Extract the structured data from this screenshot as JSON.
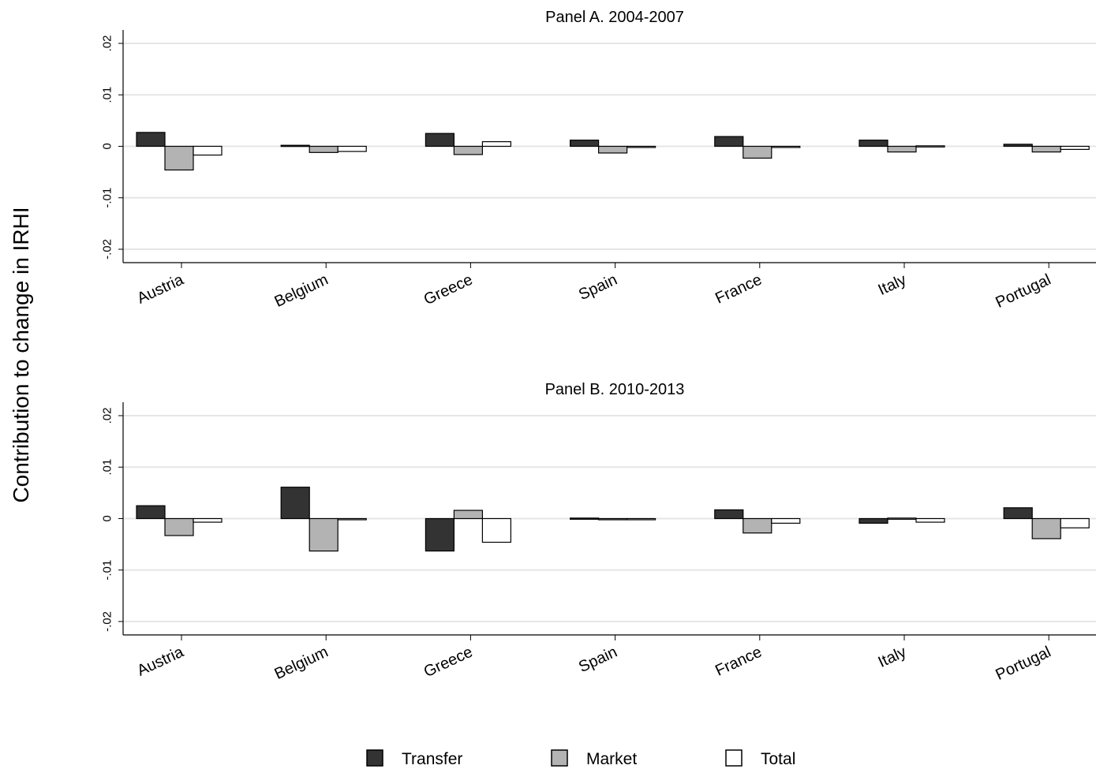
{
  "chart_data": [
    {
      "type": "bar",
      "title": "Panel A. 2004-2007",
      "ylabel": "Contribution to change in IRHI",
      "ylim": [
        -0.02,
        0.02
      ],
      "yticks": [
        "-.02",
        "-.01",
        "0",
        ".01",
        ".02"
      ],
      "grid": true,
      "categories": [
        "Austria",
        "Belgium",
        "Greece",
        "Spain",
        "France",
        "Italy",
        "Portugal"
      ],
      "series": [
        {
          "name": "Transfer",
          "values": [
            0.0027,
            0.0002,
            0.0025,
            0.0012,
            0.0019,
            0.0012,
            0.0004
          ]
        },
        {
          "name": "Market",
          "values": [
            -0.0046,
            -0.0012,
            -0.0016,
            -0.0013,
            -0.0023,
            -0.0011,
            -0.0011
          ]
        },
        {
          "name": "Total",
          "values": [
            -0.0017,
            -0.001,
            0.0009,
            -0.0002,
            -0.0002,
            0.0001,
            -0.0006
          ]
        }
      ]
    },
    {
      "type": "bar",
      "title": "Panel B. 2010-2013",
      "ylabel": "Contribution to change in IRHI",
      "ylim": [
        -0.02,
        0.02
      ],
      "yticks": [
        "-.02",
        "-.01",
        "0",
        ".01",
        ".02"
      ],
      "grid": true,
      "categories": [
        "Austria",
        "Belgium",
        "Greece",
        "Spain",
        "France",
        "Italy",
        "Portugal"
      ],
      "series": [
        {
          "name": "Transfer",
          "values": [
            0.0025,
            0.0061,
            -0.0063,
            0.0001,
            0.0017,
            -0.0009,
            0.0021
          ]
        },
        {
          "name": "Market",
          "values": [
            -0.0033,
            -0.0063,
            0.0016,
            -0.0001,
            -0.0028,
            0.0001,
            -0.0039
          ]
        },
        {
          "name": "Total",
          "values": [
            -0.0007,
            -0.0001,
            -0.0046,
            -0.0001,
            -0.0009,
            -0.0007,
            -0.0018
          ]
        }
      ]
    }
  ],
  "legend": {
    "position": "bottom",
    "items": [
      {
        "label": "Transfer",
        "color": "#333333"
      },
      {
        "label": "Market",
        "color": "#b3b3b3"
      },
      {
        "label": "Total",
        "color": "#ffffff"
      }
    ]
  },
  "colors": {
    "Transfer": "#333333",
    "Market": "#b3b3b3",
    "Total": "#ffffff",
    "grid": "#e6e6e6",
    "axis": "#000000"
  }
}
